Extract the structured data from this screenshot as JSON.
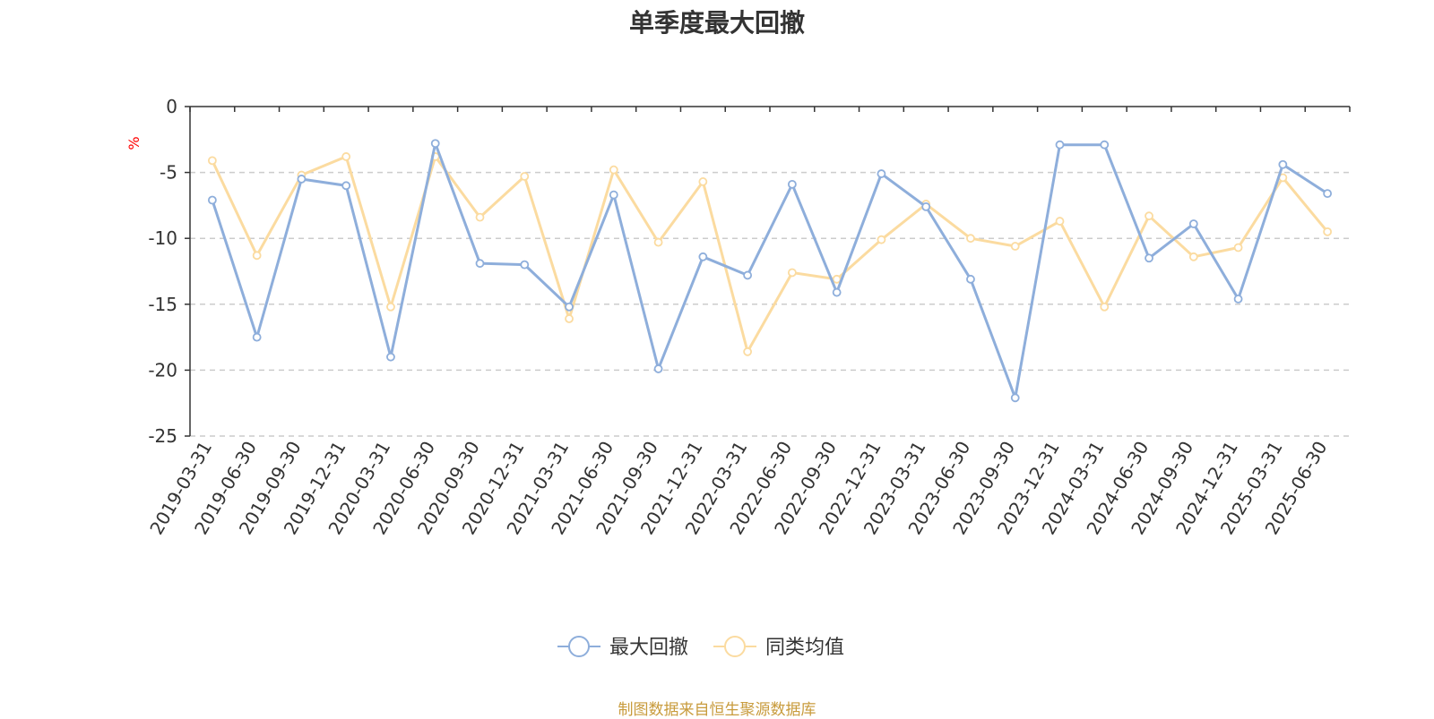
{
  "chart_data": {
    "type": "line",
    "title": "单季度最大回撤",
    "ylabel": "%",
    "xlabel": "",
    "ylim": [
      -25,
      0
    ],
    "yticks": [
      0,
      -5,
      -10,
      -15,
      -20,
      -25
    ],
    "grid": true,
    "legend_position": "bottom-center",
    "categories": [
      "2019-03-31",
      "2019-06-30",
      "2019-09-30",
      "2019-12-31",
      "2020-03-31",
      "2020-06-30",
      "2020-09-30",
      "2020-12-31",
      "2021-03-31",
      "2021-06-30",
      "2021-09-30",
      "2021-12-31",
      "2022-03-31",
      "2022-06-30",
      "2022-09-30",
      "2022-12-31",
      "2023-03-31",
      "2023-06-30",
      "2023-09-30",
      "2023-12-31",
      "2024-03-31",
      "2024-06-30",
      "2024-09-30",
      "2024-12-31",
      "2025-03-31",
      "2025-06-30"
    ],
    "series": [
      {
        "name": "最大回撤",
        "color": "#8eaedb",
        "values": [
          -7.1,
          -17.5,
          -5.5,
          -6.0,
          -19.0,
          -2.8,
          -11.9,
          -12.0,
          -15.2,
          -6.7,
          -19.9,
          -11.4,
          -12.8,
          -5.9,
          -14.1,
          -5.1,
          -7.6,
          -13.1,
          -22.1,
          -2.9,
          -2.9,
          -11.5,
          -8.9,
          -14.6,
          -4.4,
          -6.6
        ]
      },
      {
        "name": "同类均值",
        "color": "#fbdba0",
        "values": [
          -4.1,
          -11.3,
          -5.2,
          -3.8,
          -15.2,
          -3.8,
          -8.4,
          -5.3,
          -16.1,
          -4.8,
          -10.3,
          -5.7,
          -18.6,
          -12.6,
          -13.1,
          -10.1,
          -7.4,
          -10.0,
          -10.6,
          -8.7,
          -15.2,
          -8.3,
          -11.4,
          -10.7,
          -5.4,
          -9.5
        ]
      }
    ]
  },
  "source_note": "制图数据来自恒生聚源数据库",
  "colors": {
    "axis": "#333333",
    "grid": "#cccccc",
    "ylabel": "#ff0000",
    "source": "#c89b3c"
  }
}
